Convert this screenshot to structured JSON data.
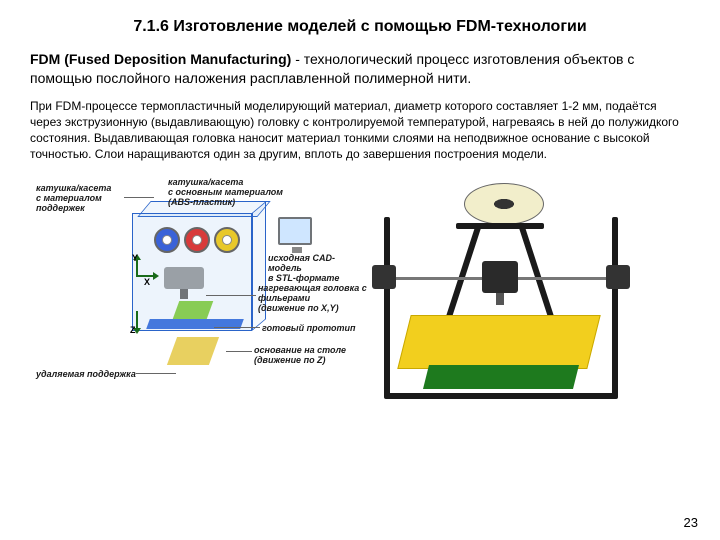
{
  "title": "7.1.6 Изготовление моделей с помощью FDM-технологии",
  "intro_bold": "FDM (Fused Deposition Manufacturing)",
  "intro_rest": " - технологический процесс изготовления объектов с помощью послойного наложения расплавленной полимерной нити.",
  "body": "При FDM-процессе термопластичный моделирующий материал, диаметр которого составляет 1-2 мм, подаётся через экструзионную (выдавливающую) головку с контролируемой температурой, нагреваясь в ней до полужидкого состояния. Выдавливающая головка наносит материал тонкими слоями на неподвижное основание с высокой точностью. Слои наращиваются один за другим, вплоть до завершения построения модели.",
  "page_number": "23",
  "diagram": {
    "labels": {
      "support_spool": "катушка/касета\nс материалом поддержек",
      "main_spool": "катушка/касета\nс основным материалом\n(ABS-пластик)",
      "cad_model": "исходная CAD-модель\nв STL-формате",
      "head": "нагревающая головка с\nфильерами\n(движение по X,Y)",
      "prototype": "готовый прототип",
      "base": "основание на столе\n(движение по Z)",
      "remove_support": "удаляемая поддержка"
    },
    "axes": {
      "x": "X",
      "y": "Y",
      "z": "Z"
    },
    "colors": {
      "cube_border": "#2a64c9",
      "spool_blue": "#3a62d8",
      "spool_red": "#d83a3a",
      "spool_yellow": "#e8c82a",
      "prototype": "#88cc55",
      "base": "#4478dd",
      "support": "#e8d060"
    }
  },
  "printer": {
    "colors": {
      "frame": "#1a1a1a",
      "bed": "#f2cf1e",
      "pcb": "#1e7a1e",
      "filament": "#f2eecb"
    }
  }
}
